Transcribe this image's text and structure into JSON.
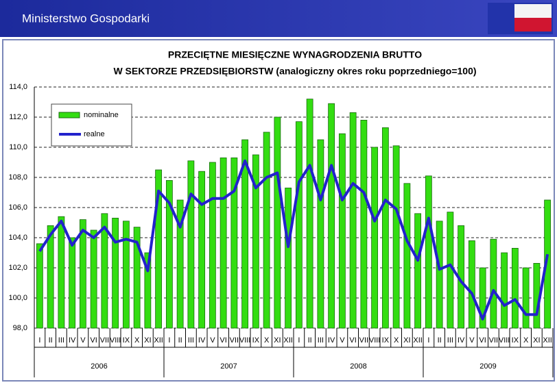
{
  "header": {
    "title": "Ministerstwo Gospodarki"
  },
  "chart_data": {
    "type": "bar-line",
    "title": "PRZECIĘTNE MIESIĘCZNE WYNAGRODZENIA BRUTTO",
    "subtitle": "W SEKTORZE PRZEDSIĘBIORSTW (analogiczny okres roku poprzedniego=100)",
    "categories": [
      "I",
      "II",
      "III",
      "IV",
      "V",
      "VI",
      "VII",
      "VIII",
      "IX",
      "X",
      "XI",
      "XII",
      "I",
      "II",
      "III",
      "IV",
      "V",
      "VI",
      "VII",
      "VIII",
      "IX",
      "X",
      "XI",
      "XII",
      "I",
      "II",
      "III",
      "IV",
      "V",
      "VI",
      "VII",
      "VIII",
      "IX",
      "X",
      "XI",
      "XII",
      "I",
      "II",
      "III",
      "IV",
      "V",
      "VI",
      "VII",
      "VIII",
      "IX",
      "X",
      "XI",
      "XII"
    ],
    "year_groups": [
      "2006",
      "2007",
      "2008",
      "2009"
    ],
    "series": [
      {
        "name": "nominalne",
        "color": "#33dd11",
        "kind": "bar",
        "values": [
          103.6,
          104.8,
          105.4,
          104.0,
          105.2,
          104.5,
          105.6,
          105.3,
          105.1,
          104.7,
          103.0,
          108.5,
          107.8,
          106.5,
          109.1,
          108.4,
          109.0,
          109.3,
          109.3,
          110.5,
          109.5,
          111.0,
          112.0,
          107.3,
          111.7,
          113.2,
          110.5,
          112.9,
          110.9,
          112.3,
          111.8,
          110.0,
          111.3,
          110.1,
          107.6,
          105.6,
          108.1,
          105.1,
          105.7,
          104.8,
          103.8,
          102.0,
          103.9,
          103.0,
          103.3,
          102.0,
          102.3,
          106.5
        ]
      },
      {
        "name": "realne",
        "color": "#2222cc",
        "kind": "line",
        "values": [
          103.1,
          104.2,
          105.1,
          103.5,
          104.5,
          104.0,
          104.7,
          103.7,
          103.9,
          103.7,
          101.8,
          107.1,
          106.3,
          104.7,
          106.9,
          106.2,
          106.6,
          106.6,
          107.1,
          109.1,
          107.3,
          108.0,
          108.3,
          103.4,
          107.7,
          108.8,
          106.5,
          108.8,
          106.5,
          107.6,
          107.0,
          105.1,
          106.5,
          105.9,
          103.8,
          102.5,
          105.3,
          101.9,
          102.2,
          101.1,
          100.3,
          98.6,
          100.5,
          99.5,
          99.9,
          98.9,
          98.9,
          102.9
        ]
      }
    ],
    "ylim": [
      98,
      114
    ],
    "yticks": [
      {
        "value": 98,
        "label": "98,0"
      },
      {
        "value": 100,
        "label": "100,0"
      },
      {
        "value": 102,
        "label": "102,0"
      },
      {
        "value": 104,
        "label": "104,0"
      },
      {
        "value": 106,
        "label": "106,0"
      },
      {
        "value": 108,
        "label": "108,0"
      },
      {
        "value": 110,
        "label": "110,0"
      },
      {
        "value": 112,
        "label": "112,0"
      },
      {
        "value": 114,
        "label": "114,0"
      }
    ],
    "grid": true,
    "legend": "top-left"
  }
}
